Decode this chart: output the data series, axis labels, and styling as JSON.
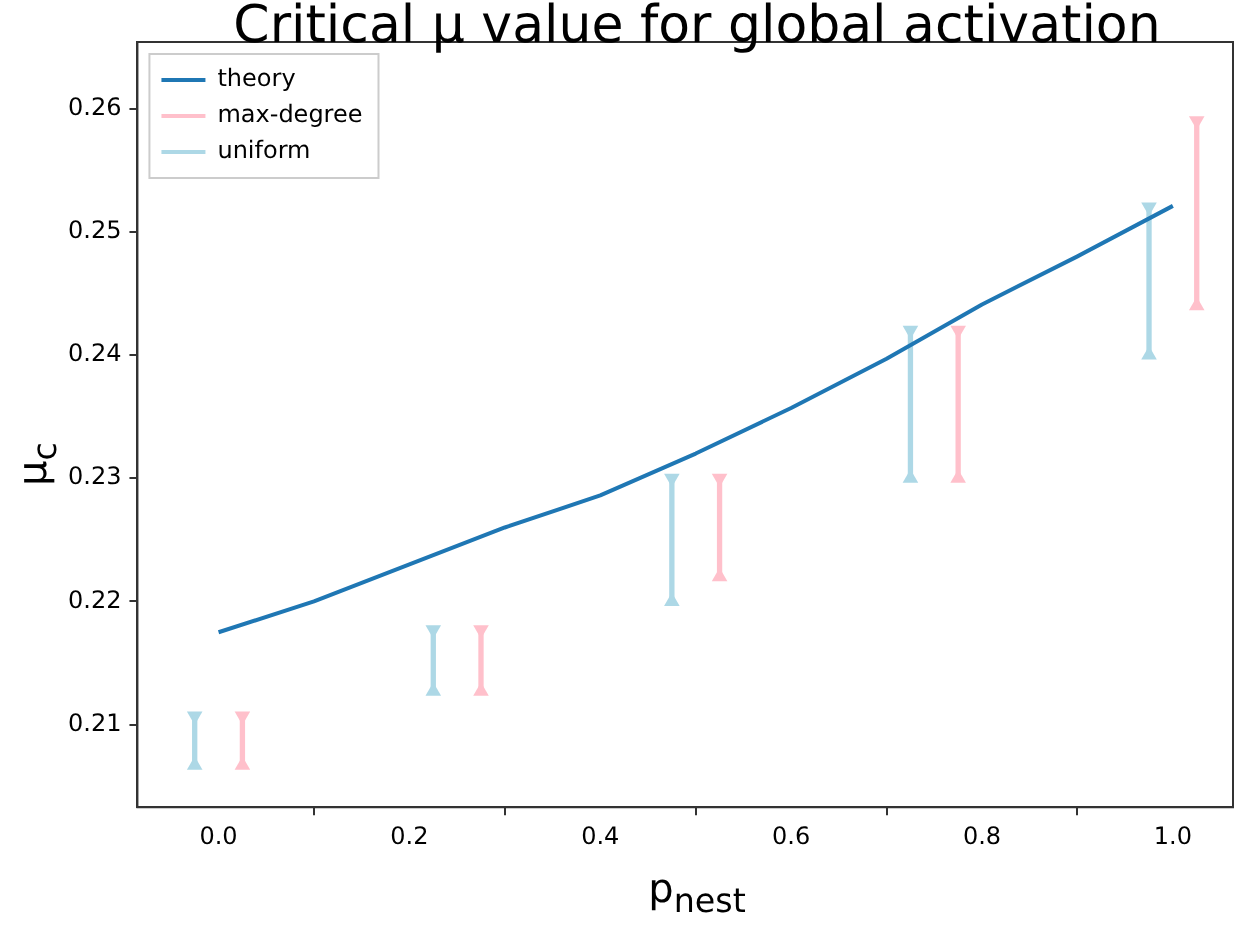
{
  "chart_data": {
    "type": "line",
    "title": "Critical μ value for global activation",
    "xlabel": "p$_{nest}$",
    "ylabel": "μ$_{c}$",
    "xlim": [
      -0.085,
      1.063
    ],
    "xticks": [
      {
        "value": 0,
        "label": "0.0"
      },
      0.2,
      0.4,
      0.6,
      0.8,
      {
        "value": 1,
        "label": "1.0"
      }
    ],
    "ylim": [
      0.2033,
      0.2654
    ],
    "yticks": [
      0.21,
      0.22,
      0.23,
      0.24,
      0.25,
      0.26
    ],
    "grid": false,
    "legend": "top left",
    "series": [
      {
        "name": "theory",
        "color": "#1f77b4",
        "marker": "none",
        "x": [
          0,
          0.1,
          0.2,
          0.3,
          0.4,
          0.5,
          0.6,
          0.7,
          0.8,
          0.9,
          1.0
        ],
        "values": [
          0.2175,
          0.22,
          0.223,
          0.226,
          0.2286,
          0.232,
          0.2357,
          0.2397,
          0.2441,
          0.248,
          0.2521
        ]
      },
      {
        "name": "max-degree",
        "type": "bar",
        "color": "#ffc0cb",
        "x": [
          0.025,
          0.275,
          0.525,
          0.775,
          1.025
        ],
        "base": [
          0.2067,
          0.2127,
          0.222,
          0.23,
          0.244
        ],
        "values": [
          0.004,
          0.005,
          0.008,
          0.012,
          0.015
        ]
      },
      {
        "name": "uniform",
        "type": "bar",
        "color": "#add8e6",
        "x": [
          -0.025,
          0.225,
          0.475,
          0.725,
          0.975
        ],
        "base": [
          0.2067,
          0.2127,
          0.22,
          0.23,
          0.24
        ],
        "values": [
          0.004,
          0.005,
          0.01,
          0.012,
          0.012
        ]
      },
      {
        "type": "scatter",
        "color": "#ffc0cb",
        "marker": "triangle",
        "x": [
          0.025,
          0.025,
          0.275,
          0.275,
          0.525,
          0.525,
          0.775,
          0.775,
          1.025,
          1.025
        ],
        "values": [
          0.2067,
          0.2107,
          0.2127,
          0.2177,
          0.222,
          0.23,
          0.23,
          0.242,
          0.244,
          0.259
        ]
      },
      {
        "type": "scatter",
        "color": "#add8e6",
        "marker": "triangle",
        "x": [
          -0.025,
          -0.025,
          0.225,
          0.225,
          0.475,
          0.475,
          0.725,
          0.725,
          0.975,
          0.975
        ],
        "values": [
          0.2067,
          0.2107,
          0.2127,
          0.2177,
          0.22,
          0.23,
          0.23,
          0.242,
          0.24,
          0.252
        ]
      }
    ]
  }
}
